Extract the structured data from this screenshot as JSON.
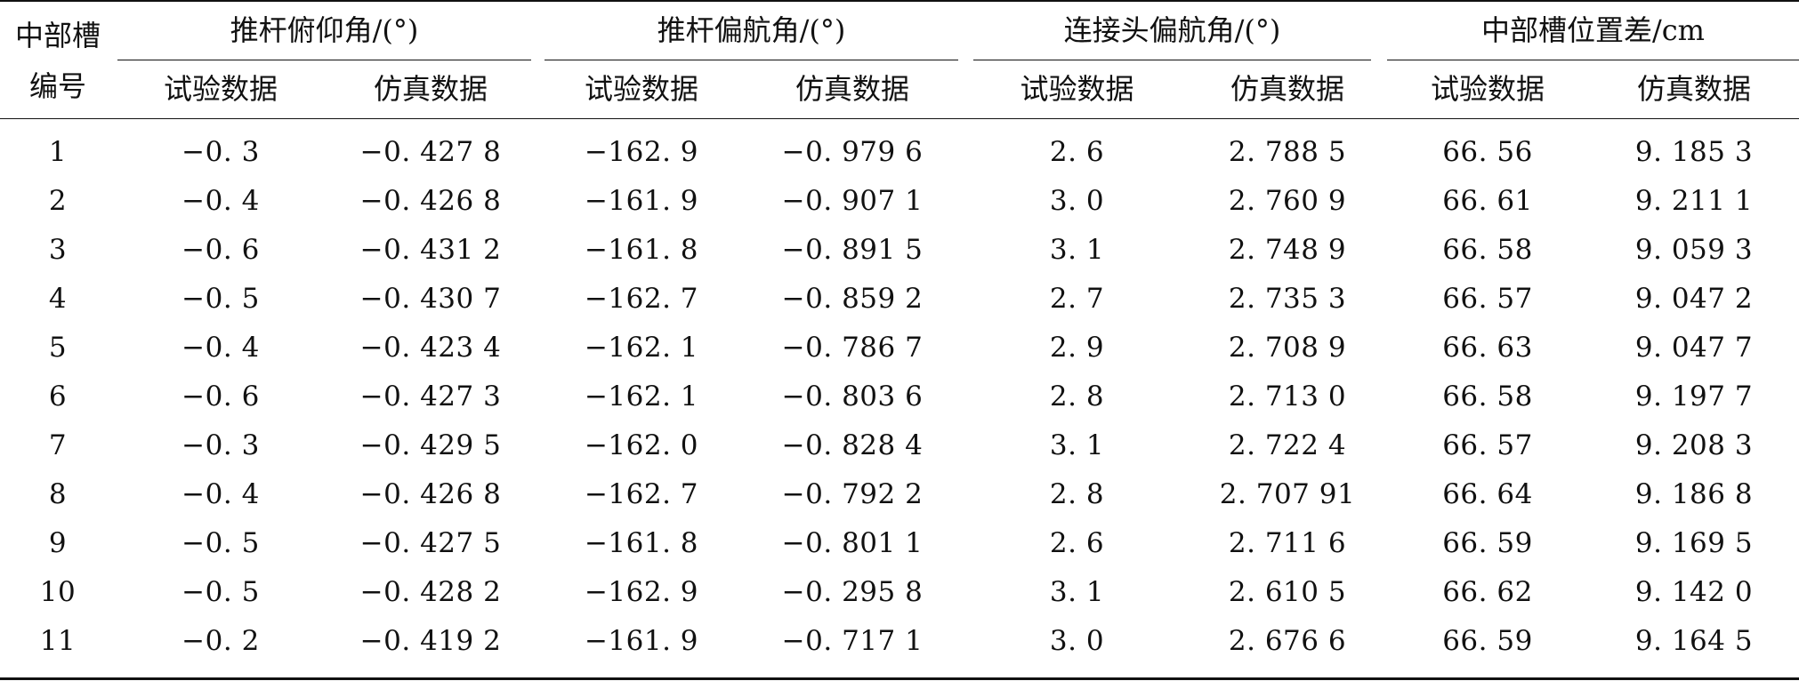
{
  "table": {
    "stub_header_line1": "中部槽",
    "stub_header_line2": "编号",
    "groups": [
      {
        "label": "推杆俯仰角/(°)",
        "sub_experiment": "试验数据",
        "sub_simulation": "仿真数据"
      },
      {
        "label": "推杆偏航角/(°)",
        "sub_experiment": "试验数据",
        "sub_simulation": "仿真数据"
      },
      {
        "label": "连接头偏航角/(°)",
        "sub_experiment": "试验数据",
        "sub_simulation": "仿真数据"
      },
      {
        "label": "中部槽位置差/cm",
        "sub_experiment": "试验数据",
        "sub_simulation": "仿真数据"
      }
    ],
    "rows": [
      [
        "1",
        "−0. 3",
        "−0. 427 8",
        "−162. 9",
        "−0. 979 6",
        "2. 6",
        "2. 788 5",
        "66. 56",
        "9. 185 3"
      ],
      [
        "2",
        "−0. 4",
        "−0. 426 8",
        "−161. 9",
        "−0. 907 1",
        "3. 0",
        "2. 760 9",
        "66. 61",
        "9. 211 1"
      ],
      [
        "3",
        "−0. 6",
        "−0. 431 2",
        "−161. 8",
        "−0. 891 5",
        "3. 1",
        "2. 748 9",
        "66. 58",
        "9. 059 3"
      ],
      [
        "4",
        "−0. 5",
        "−0. 430 7",
        "−162. 7",
        "−0. 859 2",
        "2. 7",
        "2. 735 3",
        "66. 57",
        "9. 047 2"
      ],
      [
        "5",
        "−0. 4",
        "−0. 423 4",
        "−162. 1",
        "−0. 786 7",
        "2. 9",
        "2. 708 9",
        "66. 63",
        "9. 047 7"
      ],
      [
        "6",
        "−0. 6",
        "−0. 427 3",
        "−162. 1",
        "−0. 803 6",
        "2. 8",
        "2. 713 0",
        "66. 58",
        "9. 197 7"
      ],
      [
        "7",
        "−0. 3",
        "−0. 429 5",
        "−162. 0",
        "−0. 828 4",
        "3. 1",
        "2. 722 4",
        "66. 57",
        "9. 208 3"
      ],
      [
        "8",
        "−0. 4",
        "−0. 426 8",
        "−162. 7",
        "−0. 792 2",
        "2. 8",
        "2. 707 91",
        "66. 64",
        "9. 186 8"
      ],
      [
        "9",
        "−0. 5",
        "−0. 427 5",
        "−161. 8",
        "−0. 801 1",
        "2. 6",
        "2. 711 6",
        "66. 59",
        "9. 169 5"
      ],
      [
        "10",
        "−0. 5",
        "−0. 428 2",
        "−162. 9",
        "−0. 295 8",
        "3. 1",
        "2. 610 5",
        "66. 62",
        "9. 142 0"
      ],
      [
        "11",
        "−0. 2",
        "−0. 419 2",
        "−161. 9",
        "−0. 717 1",
        "3. 0",
        "2. 676 6",
        "66. 59",
        "9. 164 5"
      ]
    ]
  }
}
